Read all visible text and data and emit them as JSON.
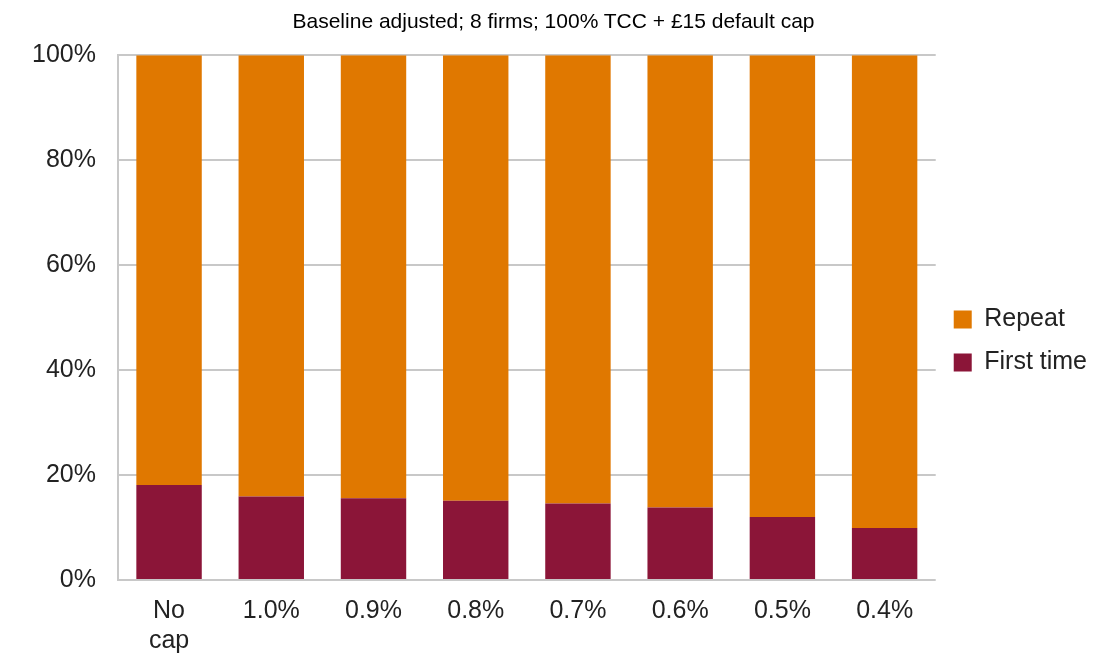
{
  "chart_data": {
    "type": "bar",
    "title": "Baseline adjusted; 8 firms; 100% TCC + £15 default cap",
    "categories": [
      "No cap",
      "1.0%",
      "0.9%",
      "0.8%",
      "0.7%",
      "0.6%",
      "0.5%",
      "0.4%"
    ],
    "stacked": true,
    "series": [
      {
        "name": "First time",
        "color": "#8b1538",
        "values": [
          18.1,
          15.9,
          15.6,
          15.1,
          14.6,
          13.8,
          12.0,
          9.9
        ]
      },
      {
        "name": "Repeat",
        "color": "#e07800",
        "values": [
          81.9,
          84.1,
          84.4,
          84.9,
          85.4,
          86.2,
          88.0,
          90.1
        ]
      }
    ],
    "ylim": [
      0,
      100
    ],
    "yticks": [
      {
        "value": 0,
        "label": "0%"
      },
      {
        "value": 20,
        "label": "20%"
      },
      {
        "value": 40,
        "label": "40%"
      },
      {
        "value": 60,
        "label": "60%"
      },
      {
        "value": 80,
        "label": "80%"
      },
      {
        "value": 100,
        "label": "100%"
      }
    ],
    "grid": "y",
    "legend": "right"
  }
}
